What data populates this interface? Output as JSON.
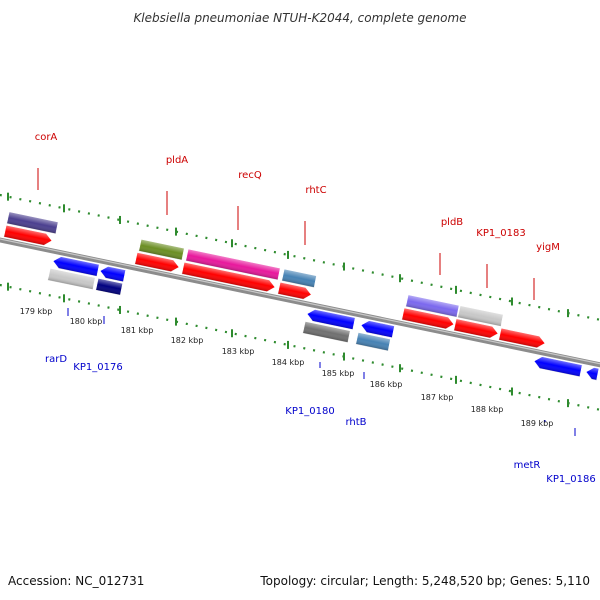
{
  "title": "Klebsiella pneumoniae NTUH-K2044, complete genome",
  "footer": {
    "accession": "Accession: NC_012731",
    "topology": "Topology: circular; Length: 5,248,520 bp; Genes: 5,110"
  },
  "colors": {
    "forward_label": "#cc0000",
    "reverse_label": "#0000cc",
    "backbone": "#8c8c8c",
    "scale_dots": "#2e8b2e"
  },
  "ticks": [
    "179 kbp",
    "180 kbp",
    "181 kbp",
    "182 kbp",
    "183 kbp",
    "184 kbp",
    "185 kbp",
    "186 kbp",
    "187 kbp",
    "188 kbp",
    "189 kbp"
  ],
  "genes_forward": [
    {
      "label": "corA",
      "color": "#4b3f8f"
    },
    {
      "label": "pldA",
      "color": "#6b8e23"
    },
    {
      "label": "recQ",
      "color": "#e8189c"
    },
    {
      "label": "rhtC",
      "color": "#4682b4"
    },
    {
      "label": "pldB",
      "color": "#7b68ee"
    },
    {
      "label": "KP1_0183",
      "color": "#c8c8c8"
    },
    {
      "label": "yigM",
      "color": "#ff0000"
    }
  ],
  "genes_reverse": [
    {
      "label": "rarD",
      "color": "#c8c8c8"
    },
    {
      "label": "KP1_0176",
      "color": "#000080"
    },
    {
      "label": "KP1_0180",
      "color": "#707070"
    },
    {
      "label": "rhtB",
      "color": "#4682b4"
    },
    {
      "label": "metR",
      "color": "#0000ff"
    },
    {
      "label": "KP1_0186",
      "color": "#0000ff"
    }
  ]
}
